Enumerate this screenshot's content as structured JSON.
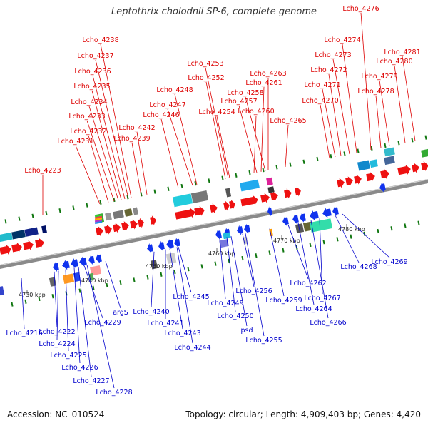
{
  "title": "Leptothrix cholodnii SP-6, complete genome",
  "footer": {
    "accession": "Accession: NC_010524",
    "topology": "Topology: circular; Length: 4,909,403 bp; Genes: 4,420"
  },
  "kbp_labels": [
    "4730 kbp",
    "4740 kbp",
    "4750 kbp",
    "4760 kbp",
    "4770 kbp",
    "4780 kbp"
  ],
  "top_labels": [
    "Lcho_4238",
    "Lcho_4237",
    "Lcho_4236",
    "Lcho_4235",
    "Lcho_4234",
    "Lcho_4233",
    "Lcho_4232",
    "Lcho_4231",
    "Lcho_4242",
    "Lcho_4239",
    "Lcho_4223",
    "Lcho_4248",
    "Lcho_4247",
    "Lcho_4246",
    "Lcho_4253",
    "Lcho_4252",
    "Lcho_4254",
    "Lcho_4257",
    "Lcho_4258",
    "Lcho_4261",
    "Lcho_4263",
    "Lcho_4260",
    "Lcho_4265",
    "Lcho_4276",
    "Lcho_4274",
    "Lcho_4273",
    "Lcho_4272",
    "Lcho_4271",
    "Lcho_4270",
    "Lcho_4279",
    "Lcho_4278",
    "Lcho_4280",
    "Lcho_4281"
  ],
  "bottom_labels": [
    "Lcho_4216",
    "Lcho_4222",
    "Lcho_4224",
    "Lcho_4229",
    "Lcho_4225",
    "Lcho_4226",
    "Lcho_4227",
    "Lcho_4228",
    "argS",
    "Lcho_4240",
    "Lcho_4241",
    "Lcho_4243",
    "Lcho_4244",
    "Lcho_4245",
    "Lcho_4249",
    "Lcho_4250",
    "psd",
    "Lcho_4256",
    "Lcho_4255",
    "Lcho_4259",
    "Lcho_4262",
    "Lcho_4264",
    "Lcho_4266",
    "Lcho_4267",
    "Lcho_4268",
    "Lcho_4269"
  ]
}
